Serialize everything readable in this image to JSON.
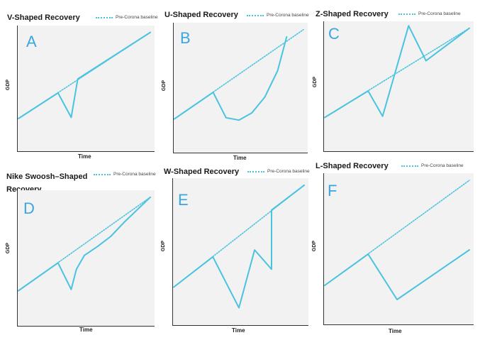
{
  "colors": {
    "accent": "#4ac3e0",
    "letter": "#3aa6e0",
    "plot_bg": "#f2f2f2"
  },
  "legend_label": "Pre-Corona baseline",
  "ylabel": "GDP",
  "xlabel": "Time",
  "chart_data": [
    {
      "type": "line",
      "letter": "A",
      "title": "V-Shaped Recovery",
      "xlabel": "Time",
      "ylabel": "GDP",
      "xlim": [
        0,
        10
      ],
      "ylim": [
        0,
        10
      ],
      "series": [
        {
          "name": "Pre-Corona baseline",
          "style": "dotted",
          "x": [
            0,
            10
          ],
          "y": [
            2.5,
            9.9
          ]
        },
        {
          "name": "GDP",
          "style": "solid",
          "x": [
            0,
            3,
            4,
            4.5,
            10
          ],
          "y": [
            2.5,
            4.7,
            2.6,
            5.9,
            9.9
          ]
        }
      ]
    },
    {
      "type": "line",
      "letter": "B",
      "title": "U-Shaped Recovery",
      "xlabel": "Time",
      "ylabel": "GDP",
      "xlim": [
        0,
        10
      ],
      "ylim": [
        0,
        10
      ],
      "series": [
        {
          "name": "Pre-Corona baseline",
          "style": "dotted",
          "x": [
            0,
            10
          ],
          "y": [
            2.5,
            9.9
          ]
        },
        {
          "name": "GDP",
          "style": "solid",
          "x": [
            0,
            3,
            4,
            5,
            6,
            7,
            8,
            8.7
          ],
          "y": [
            2.5,
            4.7,
            2.6,
            2.4,
            3.0,
            4.3,
            6.5,
            9.3
          ]
        }
      ]
    },
    {
      "type": "line",
      "letter": "C",
      "title": "Z-Shaped Recovery",
      "xlabel": "",
      "ylabel": "GDP",
      "xlim": [
        0,
        10
      ],
      "ylim": [
        0,
        10
      ],
      "series": [
        {
          "name": "Pre-Corona baseline",
          "style": "dotted",
          "x": [
            0,
            10
          ],
          "y": [
            2.5,
            9.9
          ]
        },
        {
          "name": "GDP",
          "style": "solid",
          "x": [
            0,
            3,
            4,
            5.8,
            7,
            10
          ],
          "y": [
            2.5,
            4.7,
            2.6,
            10.1,
            7.2,
            9.9
          ]
        }
      ]
    },
    {
      "type": "line",
      "letter": "D",
      "title": "Nike Swoosh–Shaped Recovery",
      "xlabel": "Time",
      "ylabel": "GDP",
      "xlim": [
        0,
        10
      ],
      "ylim": [
        0,
        10
      ],
      "series": [
        {
          "name": "Pre-Corona baseline",
          "style": "dotted",
          "x": [
            0,
            10
          ],
          "y": [
            2.5,
            9.9
          ]
        },
        {
          "name": "GDP",
          "style": "solid",
          "x": [
            0,
            3,
            4,
            4.4,
            5,
            6,
            7,
            8,
            10
          ],
          "y": [
            2.5,
            4.7,
            2.6,
            4.2,
            5.3,
            6.0,
            6.8,
            7.9,
            9.9
          ]
        }
      ]
    },
    {
      "type": "line",
      "letter": "E",
      "title": "W-Shaped Recovery",
      "xlabel": "Time",
      "ylabel": "GDP",
      "xlim": [
        0,
        10
      ],
      "ylim": [
        0,
        10
      ],
      "series": [
        {
          "name": "Pre-Corona baseline",
          "style": "dotted",
          "x": [
            0,
            10
          ],
          "y": [
            2.5,
            9.9
          ]
        },
        {
          "name": "GDP",
          "style": "solid",
          "x": [
            0,
            3,
            5,
            6.2,
            7.5,
            7.5,
            10
          ],
          "y": [
            2.5,
            4.7,
            1.0,
            5.2,
            3.8,
            8.1,
            9.9
          ]
        }
      ]
    },
    {
      "type": "line",
      "letter": "F",
      "title": "L-Shaped Recovery",
      "xlabel": "Time",
      "ylabel": "GDP",
      "xlim": [
        0,
        10
      ],
      "ylim": [
        0,
        10
      ],
      "series": [
        {
          "name": "Pre-Corona baseline",
          "style": "dotted",
          "x": [
            0,
            10
          ],
          "y": [
            2.5,
            9.9
          ]
        },
        {
          "name": "GDP",
          "style": "solid",
          "x": [
            0,
            3,
            5,
            10
          ],
          "y": [
            2.5,
            4.7,
            1.5,
            5.0
          ]
        }
      ]
    }
  ]
}
